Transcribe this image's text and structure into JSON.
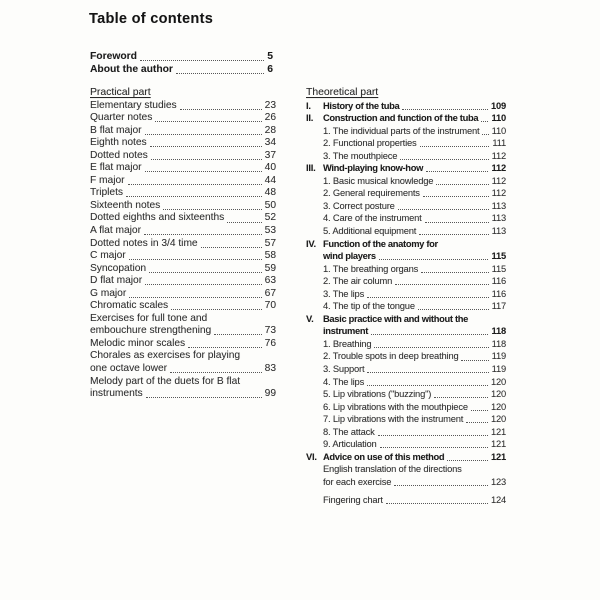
{
  "title": "Table of contents",
  "front_matter": [
    {
      "label": "Foreword",
      "page": "5",
      "bold": true
    },
    {
      "label": "About the author",
      "page": "6",
      "bold": true
    }
  ],
  "left_column": {
    "heading": "Practical part",
    "entries": [
      {
        "label": "Elementary studies",
        "page": "23"
      },
      {
        "label": "Quarter notes",
        "page": "26"
      },
      {
        "label": "B flat major",
        "page": "28"
      },
      {
        "label": "Eighth notes",
        "page": "34"
      },
      {
        "label": "Dotted notes",
        "page": "37"
      },
      {
        "label": "E flat major",
        "page": "40"
      },
      {
        "label": "F major",
        "page": "44"
      },
      {
        "label": "Triplets",
        "page": "48"
      },
      {
        "label": "Sixteenth notes",
        "page": "50"
      },
      {
        "label": "Dotted eighths and sixteenths",
        "page": "52"
      },
      {
        "label": "A flat major",
        "page": "53"
      },
      {
        "label": "Dotted notes in 3/4 time",
        "page": "57"
      },
      {
        "label": "C major",
        "page": "58"
      },
      {
        "label": "Syncopation",
        "page": "59"
      },
      {
        "label": "D flat major",
        "page": "63"
      },
      {
        "label": "G major",
        "page": "67"
      },
      {
        "label": "Chromatic scales",
        "page": "70"
      },
      {
        "pre_line": "Exercises for full tone and",
        "label": "embouchure strengthening",
        "page": "73"
      },
      {
        "label": "Melodic minor scales",
        "page": "76"
      },
      {
        "pre_line": "Chorales as exercises for playing",
        "label": "one octave lower",
        "page": "83"
      },
      {
        "pre_line": "Melody part of the duets for B flat",
        "label": "instruments",
        "page": "99"
      }
    ]
  },
  "right_column": {
    "heading": "Theoretical part",
    "entries": [
      {
        "numeral": "I.",
        "label": "History of the tuba",
        "page": "109",
        "bold": true
      },
      {
        "numeral": "II.",
        "label": "Construction and function of the tuba",
        "page": "110",
        "bold": true
      },
      {
        "label": "1. The individual parts of the instrument",
        "page": "110"
      },
      {
        "label": "2. Functional properties",
        "page": "111"
      },
      {
        "label": "3. The mouthpiece",
        "page": "112"
      },
      {
        "numeral": "III.",
        "label": "Wind-playing know-how",
        "page": "112",
        "bold": true
      },
      {
        "label": "1. Basic musical knowledge",
        "page": "112"
      },
      {
        "label": "2. General requirements",
        "page": "112"
      },
      {
        "label": "3. Correct posture",
        "page": "113"
      },
      {
        "label": "4. Care of the instrument",
        "page": "113"
      },
      {
        "label": "5. Additional equipment",
        "page": "113"
      },
      {
        "numeral": "IV.",
        "pre_line": "Function of the anatomy for",
        "label": "wind players",
        "page": "115",
        "bold": true
      },
      {
        "label": "1. The breathing organs",
        "page": "115"
      },
      {
        "label": "2. The air column",
        "page": "116"
      },
      {
        "label": "3. The lips",
        "page": "116"
      },
      {
        "label": "4. The tip of the tongue",
        "page": "117"
      },
      {
        "numeral": "V.",
        "pre_line": "Basic practice with and without the",
        "label": "instrument",
        "page": "118",
        "bold": true
      },
      {
        "label": "1. Breathing",
        "page": "118"
      },
      {
        "label": "2. Trouble spots in deep breathing",
        "page": "119"
      },
      {
        "label": "3. Support",
        "page": "119"
      },
      {
        "label": "4. The lips",
        "page": "120"
      },
      {
        "label": "5. Lip vibrations (\"buzzing\")",
        "page": "120"
      },
      {
        "label": "6. Lip vibrations with the mouthpiece",
        "page": "120"
      },
      {
        "label": "7. Lip vibrations with the instrument",
        "page": "120"
      },
      {
        "label": "8. The attack",
        "page": "121"
      },
      {
        "label": "9. Articulation",
        "page": "121"
      },
      {
        "numeral": "VI.",
        "label": "Advice on use of this method",
        "page": "121",
        "bold": true
      },
      {
        "pre_line": "English translation of the directions",
        "label": "for each exercise",
        "page": "123"
      },
      {
        "label": "Fingering chart",
        "page": "124",
        "gap_before": true
      }
    ]
  }
}
